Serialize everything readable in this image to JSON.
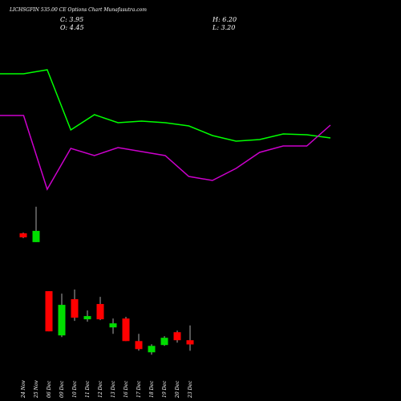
{
  "chart_data": [
    {
      "type": "line",
      "series": [
        {
          "color": "#00ff00",
          "values": [
            79,
            79,
            81.5,
            44,
            53.5,
            48.5,
            49.5,
            48.5,
            46.5,
            40.5,
            37,
            38,
            41.5,
            41,
            39
          ]
        },
        {
          "color": "#cc00cc",
          "values": [
            53,
            53,
            7,
            32.5,
            28,
            33,
            30.5,
            28,
            15,
            12.5,
            20,
            30,
            34,
            34,
            47
          ]
        }
      ],
      "ylim": [
        0,
        100
      ]
    },
    {
      "type": "candlestick",
      "title": "LICHSGFIN 535.00 CE Options Chart Munafasutra.com",
      "ohlc_labels": [
        "C: 3.95",
        "H: 6.20",
        "O: 4.45",
        "L: 3.20"
      ],
      "categories": [
        "24 Nov",
        "25 Nov",
        "06 Dec",
        "09 Dec",
        "10 Dec",
        "11 Dec",
        "12 Dec",
        "13 Dec",
        "16 Dec",
        "17 Dec",
        "18 Dec",
        "19 Dec",
        "20 Dec",
        "23 Dec"
      ],
      "open": [
        17.12,
        16.07,
        10.26,
        5.02,
        9.31,
        6.93,
        8.74,
        5.97,
        7.02,
        4.35,
        3.02,
        3.88,
        5.4,
        4.45
      ],
      "high": [
        17.2,
        20.26,
        10.26,
        9.97,
        10.45,
        7.97,
        9.59,
        7.02,
        7.21,
        5.21,
        3.97,
        4.93,
        5.59,
        6.2
      ],
      "low": [
        16.55,
        16.07,
        5.5,
        4.83,
        6.74,
        6.64,
        6.83,
        5.21,
        4.35,
        3.21,
        2.74,
        3.78,
        4.16,
        3.2
      ],
      "close": [
        16.64,
        17.4,
        5.5,
        8.64,
        7.12,
        7.31,
        6.93,
        6.45,
        4.35,
        3.4,
        3.78,
        4.74,
        4.45,
        3.95
      ],
      "up_color": "#00dd00",
      "down_color": "#ff0000",
      "ylim": [
        2,
        21
      ]
    }
  ]
}
